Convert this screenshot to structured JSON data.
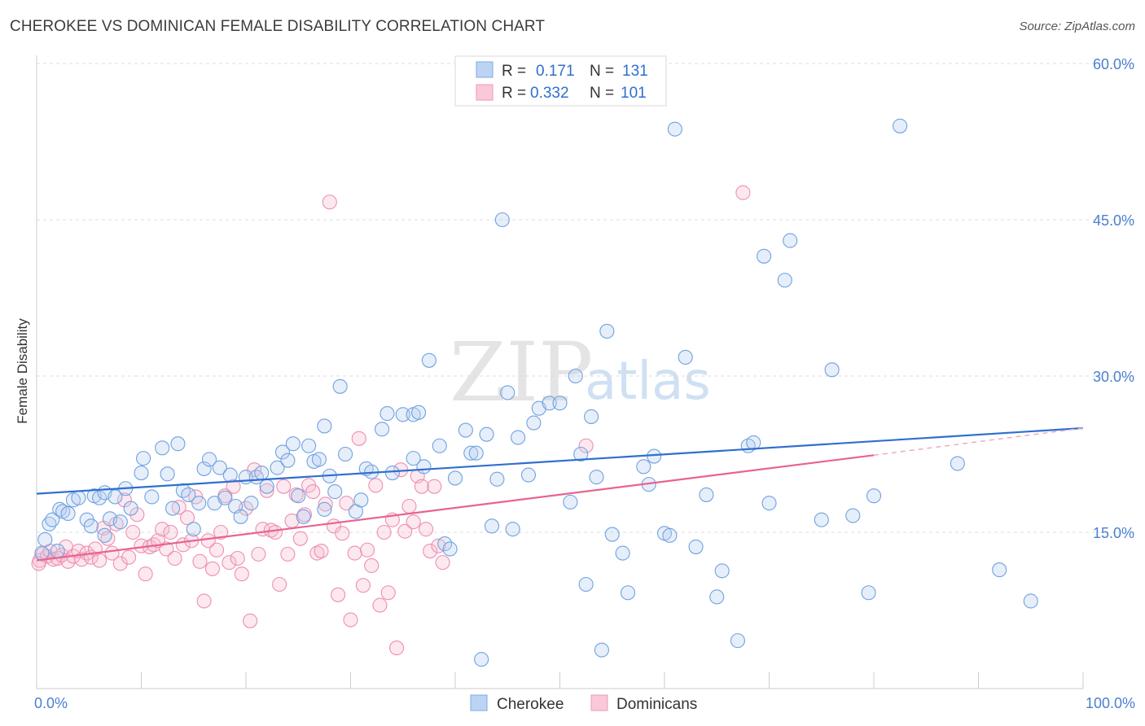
{
  "title": "CHEROKEE VS DOMINICAN FEMALE DISABILITY CORRELATION CHART",
  "source": "Source: ZipAtlas.com",
  "watermark": {
    "zip": "ZIP",
    "atlas": "atlas"
  },
  "colors": {
    "blue": "#6fa2e0",
    "blue_line": "#2f6fcf",
    "pink": "#f08fb0",
    "pink_line": "#e8638f",
    "grid": "#dcdcdc",
    "axis_text": "#4a7fd0"
  },
  "legend": {
    "rows": [
      {
        "r_label": "R = ",
        "r_value": "0.171",
        "n_label": "N = ",
        "n_value": "131"
      },
      {
        "r_label": "R = ",
        "r_value": "0.332",
        "n_label": "N = ",
        "n_value": "101"
      }
    ]
  },
  "chart_data": {
    "type": "scatter",
    "title": "CHEROKEE VS DOMINICAN FEMALE DISABILITY CORRELATION CHART",
    "xlabel": "",
    "ylabel": "Female Disability",
    "xlim": [
      0,
      100
    ],
    "ylim": [
      0,
      60
    ],
    "x_tick_labels": [
      "0.0%",
      "100.0%"
    ],
    "y_ticks": [
      15,
      30,
      45,
      60
    ],
    "y_tick_labels": [
      "15.0%",
      "30.0%",
      "45.0%",
      "60.0%"
    ],
    "grid": true,
    "legend_placement": "top-center",
    "series": [
      {
        "name": "Cherokee",
        "color": "#6fa2e0",
        "r": 0.171,
        "n": 131,
        "trend": {
          "x": [
            0,
            100
          ],
          "y": [
            18.7,
            25.0
          ]
        },
        "points": [
          [
            0.5,
            13.0
          ],
          [
            0.8,
            14.3
          ],
          [
            1.2,
            15.8
          ],
          [
            1.5,
            16.2
          ],
          [
            2.2,
            17.2
          ],
          [
            2.5,
            17.0
          ],
          [
            3.0,
            16.8
          ],
          [
            3.5,
            18.1
          ],
          [
            4.0,
            18.3
          ],
          [
            4.8,
            16.2
          ],
          [
            5.2,
            15.6
          ],
          [
            5.5,
            18.5
          ],
          [
            6.0,
            18.3
          ],
          [
            6.5,
            18.8
          ],
          [
            7.0,
            16.3
          ],
          [
            7.5,
            18.4
          ],
          [
            8.0,
            16.0
          ],
          [
            8.5,
            19.2
          ],
          [
            9.0,
            17.3
          ],
          [
            10.0,
            20.7
          ],
          [
            10.2,
            22.1
          ],
          [
            11.0,
            18.4
          ],
          [
            12.0,
            23.1
          ],
          [
            12.5,
            20.6
          ],
          [
            13.0,
            17.3
          ],
          [
            13.5,
            23.5
          ],
          [
            14.0,
            19.0
          ],
          [
            14.5,
            18.6
          ],
          [
            15.0,
            15.3
          ],
          [
            15.5,
            17.8
          ],
          [
            16.0,
            21.1
          ],
          [
            16.5,
            22.0
          ],
          [
            17.0,
            17.8
          ],
          [
            17.5,
            21.2
          ],
          [
            18.0,
            18.3
          ],
          [
            18.5,
            20.5
          ],
          [
            19.0,
            17.5
          ],
          [
            19.5,
            16.5
          ],
          [
            20.0,
            20.3
          ],
          [
            20.5,
            17.8
          ],
          [
            21.0,
            20.3
          ],
          [
            21.5,
            20.7
          ],
          [
            22.0,
            19.4
          ],
          [
            23.0,
            21.2
          ],
          [
            23.5,
            22.7
          ],
          [
            24.0,
            21.9
          ],
          [
            24.5,
            23.5
          ],
          [
            25.0,
            18.5
          ],
          [
            25.5,
            16.5
          ],
          [
            26.0,
            23.3
          ],
          [
            26.5,
            21.8
          ],
          [
            27.0,
            22.0
          ],
          [
            27.5,
            25.2
          ],
          [
            28.0,
            20.4
          ],
          [
            28.5,
            18.9
          ],
          [
            29.0,
            29.0
          ],
          [
            29.5,
            22.5
          ],
          [
            30.5,
            17.0
          ],
          [
            31.0,
            18.1
          ],
          [
            31.5,
            21.1
          ],
          [
            32.0,
            20.8
          ],
          [
            33.0,
            24.9
          ],
          [
            33.5,
            26.4
          ],
          [
            34.0,
            20.7
          ],
          [
            35.0,
            26.3
          ],
          [
            36.0,
            26.3
          ],
          [
            36.5,
            26.5
          ],
          [
            37.0,
            21.3
          ],
          [
            37.5,
            31.5
          ],
          [
            38.5,
            23.3
          ],
          [
            39.0,
            13.9
          ],
          [
            39.5,
            13.4
          ],
          [
            40.0,
            20.2
          ],
          [
            41.0,
            24.8
          ],
          [
            41.5,
            22.6
          ],
          [
            42.0,
            22.6
          ],
          [
            42.5,
            2.8
          ],
          [
            43.0,
            24.4
          ],
          [
            43.5,
            15.6
          ],
          [
            44.0,
            20.1
          ],
          [
            44.5,
            45.0
          ],
          [
            45.0,
            28.4
          ],
          [
            45.5,
            15.3
          ],
          [
            46.0,
            24.1
          ],
          [
            47.5,
            25.5
          ],
          [
            48.0,
            26.9
          ],
          [
            49.0,
            27.4
          ],
          [
            50.0,
            27.4
          ],
          [
            51.0,
            17.9
          ],
          [
            51.5,
            30.0
          ],
          [
            52.0,
            22.5
          ],
          [
            52.5,
            10.0
          ],
          [
            53.0,
            26.1
          ],
          [
            53.5,
            20.3
          ],
          [
            54.0,
            3.7
          ],
          [
            54.5,
            34.3
          ],
          [
            55.0,
            14.8
          ],
          [
            56.0,
            13.0
          ],
          [
            56.5,
            9.2
          ],
          [
            58.0,
            21.3
          ],
          [
            58.5,
            19.6
          ],
          [
            59.0,
            22.3
          ],
          [
            60.0,
            14.9
          ],
          [
            60.5,
            14.7
          ],
          [
            61.0,
            53.7
          ],
          [
            62.0,
            31.8
          ],
          [
            63.0,
            13.6
          ],
          [
            64.0,
            18.6
          ],
          [
            65.0,
            8.8
          ],
          [
            65.5,
            11.3
          ],
          [
            67.0,
            4.6
          ],
          [
            68.0,
            23.3
          ],
          [
            68.5,
            23.6
          ],
          [
            69.5,
            41.5
          ],
          [
            70.0,
            17.8
          ],
          [
            71.5,
            39.2
          ],
          [
            72.0,
            43.0
          ],
          [
            75.0,
            16.2
          ],
          [
            76.0,
            30.6
          ],
          [
            78.0,
            16.6
          ],
          [
            79.5,
            9.2
          ],
          [
            80.0,
            18.5
          ],
          [
            82.5,
            54.0
          ],
          [
            88.0,
            21.6
          ],
          [
            92.0,
            11.4
          ],
          [
            95.0,
            8.4
          ],
          [
            2.0,
            13.2
          ],
          [
            6.5,
            14.7
          ],
          [
            27.5,
            17.2
          ],
          [
            36.0,
            22.1
          ],
          [
            47.0,
            20.5
          ]
        ]
      },
      {
        "name": "Dominicans",
        "color": "#f08fb0",
        "r": 0.332,
        "n": 101,
        "trend": {
          "x": [
            0,
            80
          ],
          "y": [
            12.3,
            22.4
          ]
        },
        "trend_dashed": {
          "x": [
            80,
            100
          ],
          "y": [
            22.4,
            25.0
          ]
        },
        "points": [
          [
            0.3,
            12.3
          ],
          [
            0.6,
            12.9
          ],
          [
            1.0,
            12.7
          ],
          [
            1.3,
            13.2
          ],
          [
            1.6,
            12.4
          ],
          [
            2.0,
            12.5
          ],
          [
            2.4,
            12.8
          ],
          [
            2.8,
            13.6
          ],
          [
            3.0,
            12.2
          ],
          [
            3.5,
            12.7
          ],
          [
            4.0,
            13.2
          ],
          [
            4.3,
            12.4
          ],
          [
            4.8,
            13.0
          ],
          [
            5.2,
            12.6
          ],
          [
            5.6,
            13.4
          ],
          [
            6.0,
            12.3
          ],
          [
            6.4,
            15.4
          ],
          [
            6.8,
            14.4
          ],
          [
            7.2,
            13.0
          ],
          [
            7.6,
            15.8
          ],
          [
            8.0,
            12.0
          ],
          [
            8.4,
            18.1
          ],
          [
            8.8,
            12.6
          ],
          [
            9.2,
            15.0
          ],
          [
            9.6,
            16.7
          ],
          [
            10.0,
            13.7
          ],
          [
            10.4,
            11.0
          ],
          [
            10.8,
            13.6
          ],
          [
            11.2,
            13.8
          ],
          [
            11.6,
            14.2
          ],
          [
            12.0,
            15.3
          ],
          [
            12.4,
            13.4
          ],
          [
            12.8,
            15.0
          ],
          [
            13.2,
            12.5
          ],
          [
            13.6,
            17.4
          ],
          [
            14.0,
            13.8
          ],
          [
            14.4,
            16.4
          ],
          [
            14.8,
            14.2
          ],
          [
            15.2,
            18.4
          ],
          [
            15.6,
            12.2
          ],
          [
            16.0,
            8.4
          ],
          [
            16.4,
            14.2
          ],
          [
            16.8,
            11.5
          ],
          [
            17.2,
            13.3
          ],
          [
            17.6,
            15.0
          ],
          [
            18.0,
            18.5
          ],
          [
            18.4,
            12.1
          ],
          [
            18.8,
            19.4
          ],
          [
            19.2,
            12.5
          ],
          [
            19.6,
            11.0
          ],
          [
            20.0,
            17.3
          ],
          [
            20.4,
            6.5
          ],
          [
            20.8,
            21.0
          ],
          [
            21.2,
            12.9
          ],
          [
            21.6,
            15.3
          ],
          [
            22.0,
            19.0
          ],
          [
            22.4,
            15.2
          ],
          [
            22.8,
            15.0
          ],
          [
            23.2,
            10.0
          ],
          [
            23.6,
            19.4
          ],
          [
            24.0,
            12.9
          ],
          [
            24.4,
            16.1
          ],
          [
            24.8,
            18.6
          ],
          [
            25.2,
            14.4
          ],
          [
            25.6,
            16.7
          ],
          [
            26.0,
            19.5
          ],
          [
            26.4,
            18.9
          ],
          [
            26.8,
            13.0
          ],
          [
            27.2,
            13.2
          ],
          [
            27.6,
            17.7
          ],
          [
            28.0,
            46.7
          ],
          [
            28.4,
            15.6
          ],
          [
            28.8,
            9.0
          ],
          [
            29.2,
            14.9
          ],
          [
            29.6,
            17.8
          ],
          [
            30.0,
            6.6
          ],
          [
            30.4,
            13.0
          ],
          [
            30.8,
            24.0
          ],
          [
            31.2,
            9.9
          ],
          [
            31.6,
            13.3
          ],
          [
            32.0,
            11.8
          ],
          [
            32.4,
            19.5
          ],
          [
            32.8,
            8.0
          ],
          [
            33.2,
            15.0
          ],
          [
            33.6,
            9.2
          ],
          [
            34.0,
            16.2
          ],
          [
            34.4,
            3.9
          ],
          [
            34.8,
            21.0
          ],
          [
            35.2,
            15.1
          ],
          [
            35.6,
            17.5
          ],
          [
            36.0,
            16.0
          ],
          [
            36.4,
            20.4
          ],
          [
            36.8,
            19.4
          ],
          [
            37.2,
            15.3
          ],
          [
            37.6,
            13.2
          ],
          [
            38.0,
            19.4
          ],
          [
            38.4,
            13.7
          ],
          [
            38.8,
            12.1
          ],
          [
            52.5,
            23.3
          ],
          [
            67.5,
            47.6
          ],
          [
            0.2,
            12.0
          ]
        ]
      }
    ]
  },
  "bottom_legend": [
    {
      "label": "Cherokee"
    },
    {
      "label": "Dominicans"
    }
  ]
}
